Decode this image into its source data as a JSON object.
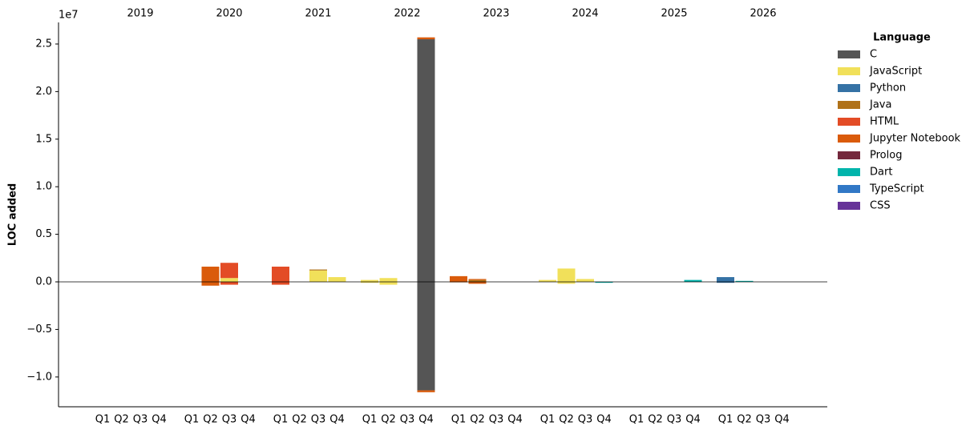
{
  "chart_data": {
    "type": "bar",
    "stacked": true,
    "ylabel": "LOC added",
    "y_offset_label": "1e7",
    "categories": [
      "Q1",
      "Q2",
      "Q3",
      "Q4",
      "Q1",
      "Q2",
      "Q3",
      "Q4",
      "Q1",
      "Q2",
      "Q3",
      "Q4",
      "Q1",
      "Q2",
      "Q3",
      "Q4",
      "Q1",
      "Q2",
      "Q3",
      "Q4",
      "Q1",
      "Q2",
      "Q3",
      "Q4",
      "Q1",
      "Q2",
      "Q3",
      "Q4",
      "Q1",
      "Q2",
      "Q3",
      "Q4"
    ],
    "years": [
      "2019",
      "2020",
      "2021",
      "2022",
      "2023",
      "2024",
      "2025",
      "2026"
    ],
    "ylim": [
      -1.313,
      2.727
    ],
    "yticks": [
      {
        "value": -1.0,
        "label": "−1.0"
      },
      {
        "value": -0.5,
        "label": "−0.5"
      },
      {
        "value": 0,
        "label": "0.0"
      },
      0.5,
      {
        "value": 1.0,
        "label": "1.0"
      },
      1.5,
      {
        "value": 2.0,
        "label": "2.0"
      },
      2.5
    ],
    "legend_title": "Language",
    "legend": "upper right outside",
    "series": [
      {
        "name": "C",
        "color": "#555555",
        "values": [
          0,
          0,
          0,
          0,
          0,
          0,
          0,
          0,
          0,
          0,
          0,
          0,
          0,
          0,
          0,
          2.55,
          0,
          0,
          0,
          0,
          0,
          0,
          0,
          0,
          0,
          0,
          0,
          0,
          0,
          0,
          0,
          0
        ],
        "removed": [
          0,
          0,
          0,
          0,
          0,
          0,
          0,
          0,
          0,
          0,
          0,
          0,
          0,
          0,
          0,
          -1.14,
          0,
          0,
          0,
          0,
          0,
          0,
          0,
          0,
          0,
          0,
          0,
          0,
          0,
          0,
          0,
          0
        ]
      },
      {
        "name": "JavaScript",
        "color": "#f1e05a",
        "values": [
          0,
          0,
          0,
          0,
          0,
          0,
          0.04,
          0,
          0,
          0,
          0.12,
          0.05,
          0.02,
          0.04,
          0,
          0,
          0,
          0,
          0,
          0,
          0.02,
          0.14,
          0.03,
          0,
          0,
          0,
          0,
          0,
          0,
          0,
          0,
          0
        ],
        "removed": [
          0,
          0,
          0,
          0,
          0,
          0,
          0,
          0,
          0,
          0,
          0,
          0,
          -0.01,
          -0.03,
          0,
          0,
          0,
          0,
          0,
          0,
          0,
          -0.02,
          0,
          0,
          0,
          0,
          0,
          0,
          0,
          0,
          0,
          0
        ]
      },
      {
        "name": "Python",
        "color": "#3572A5",
        "values": [
          0,
          0,
          0,
          0,
          0,
          0,
          0,
          0,
          0,
          0,
          0,
          0,
          0,
          0,
          0,
          0,
          0,
          0,
          0,
          0,
          0,
          0,
          0,
          0,
          0,
          0,
          0,
          0,
          0.05,
          0,
          0,
          0
        ],
        "removed": [
          0,
          0,
          0,
          0,
          0,
          0,
          0,
          0,
          0,
          0,
          0,
          0,
          0,
          0,
          0,
          0,
          0,
          0,
          0,
          0,
          0,
          0,
          0,
          0,
          0,
          0,
          0,
          0,
          -0.01,
          0,
          0,
          0
        ]
      },
      {
        "name": "Java",
        "color": "#b07219",
        "values": [
          0,
          0,
          0,
          0,
          0,
          0,
          0,
          0,
          0,
          0,
          0.01,
          0,
          0,
          0,
          0,
          0,
          0,
          0.02,
          0,
          0,
          0,
          0,
          0,
          0,
          0,
          0,
          0,
          0,
          0,
          0,
          0,
          0
        ],
        "removed": [
          0,
          0,
          0,
          0,
          0,
          0,
          0,
          0,
          0,
          0,
          0,
          0,
          0,
          0,
          0,
          0,
          0,
          0,
          0,
          0,
          0,
          0,
          0,
          0,
          0,
          0,
          0,
          0,
          0,
          0,
          0,
          0
        ]
      },
      {
        "name": "HTML",
        "color": "#e34c26",
        "values": [
          0,
          0,
          0,
          0,
          0,
          0,
          0.16,
          0,
          0.16,
          0,
          0,
          0,
          0,
          0,
          0,
          0,
          0,
          0,
          0,
          0,
          0,
          0,
          0,
          0,
          0,
          0,
          0,
          0,
          0,
          0,
          0,
          0
        ],
        "removed": [
          0,
          0,
          0,
          0,
          0,
          0,
          -0.03,
          0,
          -0.03,
          0,
          0,
          0,
          0,
          0,
          0,
          0,
          0,
          0,
          0,
          0,
          0,
          0,
          0,
          0,
          0,
          0,
          0,
          0,
          0,
          0,
          0,
          0
        ]
      },
      {
        "name": "Jupyter Notebook",
        "color": "#DA5B0B",
        "values": [
          0,
          0,
          0,
          0,
          0,
          0.16,
          0,
          0,
          0,
          0,
          0,
          0,
          0,
          0,
          0,
          0.02,
          0.06,
          0.01,
          0,
          0,
          0,
          0,
          0,
          0,
          0,
          0,
          0,
          0,
          0,
          0,
          0,
          0
        ],
        "removed": [
          0,
          0,
          0,
          0,
          0,
          -0.04,
          0,
          0,
          0,
          0,
          0,
          0,
          0,
          0,
          0,
          -0.02,
          -0.005,
          -0.02,
          0,
          0,
          0,
          0,
          0,
          0,
          0,
          0,
          0,
          0,
          0,
          0,
          0,
          0
        ]
      },
      {
        "name": "Prolog",
        "color": "#74283c",
        "values": [
          0,
          0,
          0,
          0,
          0,
          0,
          0,
          0,
          0,
          0,
          0,
          0,
          0,
          0,
          0,
          0,
          0,
          0,
          0,
          0,
          0,
          0,
          0,
          0,
          0,
          0,
          0,
          0,
          0,
          0,
          0,
          0
        ],
        "removed": [
          0,
          0,
          0,
          0,
          0,
          0,
          0,
          0,
          0,
          0,
          0,
          0,
          0,
          0,
          0,
          0,
          0,
          0,
          0,
          0,
          0,
          0,
          0,
          0,
          0,
          0,
          0,
          0,
          0,
          0,
          0,
          0
        ]
      },
      {
        "name": "Dart",
        "color": "#00B4AB",
        "values": [
          0,
          0,
          0,
          0,
          0,
          0,
          0,
          0,
          0,
          0,
          0,
          0,
          0,
          0,
          0,
          0,
          0,
          0,
          0,
          0,
          0,
          0,
          0,
          0,
          0,
          0,
          0,
          0.02,
          0,
          0.01,
          0,
          0
        ],
        "removed": [
          0,
          0,
          0,
          0,
          0,
          0,
          0,
          0,
          0,
          0,
          0,
          0,
          0,
          0,
          0,
          0,
          0,
          0,
          0,
          0,
          0,
          0,
          0,
          -0.01,
          0,
          0,
          0,
          0,
          0,
          0,
          0,
          0
        ]
      },
      {
        "name": "TypeScript",
        "color": "#3178c6",
        "values": [
          0,
          0,
          0,
          0,
          0,
          0,
          0,
          0,
          0,
          0,
          0,
          0,
          0,
          0,
          0,
          0,
          0,
          0,
          0,
          0,
          0,
          0,
          0,
          0,
          0,
          0,
          0,
          0,
          0,
          0,
          0,
          0
        ],
        "removed": [
          0,
          0,
          0,
          0,
          0,
          0,
          0,
          0,
          0,
          0,
          0,
          0,
          0,
          0,
          0,
          0,
          0,
          0,
          0,
          0,
          0,
          0,
          0,
          0,
          0,
          0,
          0,
          0,
          0,
          0,
          0,
          0
        ]
      },
      {
        "name": "CSS",
        "color": "#663399",
        "values": [
          0,
          0,
          0,
          0,
          0,
          0,
          0,
          0,
          0,
          0,
          0,
          0,
          0,
          0,
          0,
          0,
          0,
          0,
          0,
          0,
          0,
          0,
          0,
          0,
          0,
          0,
          0,
          0,
          0,
          0,
          0,
          0
        ],
        "removed": [
          0,
          0,
          0,
          0,
          0,
          0,
          0,
          0,
          0,
          0,
          0,
          0,
          0,
          0,
          0,
          0,
          0,
          0,
          0,
          0,
          0,
          0,
          0,
          0,
          0,
          0,
          0,
          0,
          0,
          0,
          0,
          0
        ]
      }
    ]
  }
}
